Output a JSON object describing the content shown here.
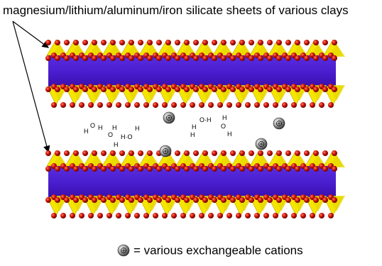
{
  "header": {
    "title": "magnesium/lithium/aluminum/iron silicate sheets of various clays"
  },
  "water_labels": [
    "H",
    "O",
    "H",
    "H",
    "O",
    "H",
    "H·O",
    "H",
    "O·H",
    "H",
    "H",
    "H",
    "O",
    "H"
  ],
  "legend": {
    "label": "= various exchangeable cations"
  }
}
